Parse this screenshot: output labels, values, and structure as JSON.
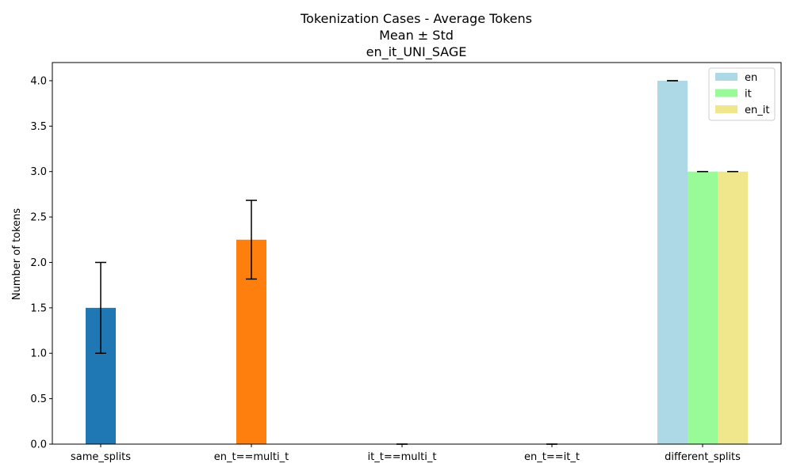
{
  "chart_data": {
    "type": "bar",
    "title_lines": [
      "Tokenization Cases - Average Tokens",
      "Mean ± Std",
      "en_it_UNI_SAGE"
    ],
    "xlabel": "",
    "ylabel": "Number of tokens",
    "ylim": [
      0,
      4.2
    ],
    "yticks": [
      "0.0",
      "0.5",
      "1.0",
      "1.5",
      "2.0",
      "2.5",
      "3.0",
      "3.5",
      "4.0"
    ],
    "categories": [
      "same_splits",
      "en_t==multi_t",
      "it_t==multi_t",
      "en_t==it_t",
      "different_splits"
    ],
    "single_bars": [
      {
        "category": "same_splits",
        "mean": 1.5,
        "std": 0.5,
        "color": "#1f77b4"
      },
      {
        "category": "en_t==multi_t",
        "mean": 2.25,
        "std": 0.433,
        "color": "#ff7f0e"
      },
      {
        "category": "it_t==multi_t",
        "mean": 0,
        "std": 0,
        "color": "#2ca02c"
      },
      {
        "category": "en_t==it_t",
        "mean": 0,
        "std": 0,
        "color": "#d62728"
      }
    ],
    "grouped": {
      "category": "different_splits",
      "series": [
        {
          "name": "en",
          "mean": 4.0,
          "std": 0,
          "color": "#add8e6"
        },
        {
          "name": "it",
          "mean": 3.0,
          "std": 0,
          "color": "#98fb98"
        },
        {
          "name": "en_it",
          "mean": 3.0,
          "std": 0,
          "color": "#f0e68c"
        }
      ]
    },
    "legend": {
      "placement": "top-right",
      "entries": [
        "en",
        "it",
        "en_it"
      ]
    },
    "grid": false
  }
}
